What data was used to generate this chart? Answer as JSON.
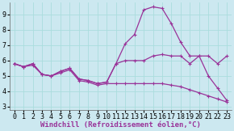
{
  "xlabel": "Windchill (Refroidissement éolien,°C)",
  "background_color": "#cce8f0",
  "grid_color": "#aadddd",
  "line_color": "#993399",
  "xlim": [
    -0.5,
    23.5
  ],
  "ylim": [
    2.8,
    9.8
  ],
  "yticks": [
    3,
    4,
    5,
    6,
    7,
    8,
    9
  ],
  "xticks": [
    0,
    1,
    2,
    3,
    4,
    5,
    6,
    7,
    8,
    9,
    10,
    11,
    12,
    13,
    14,
    15,
    16,
    17,
    18,
    19,
    20,
    21,
    22,
    23
  ],
  "series1_x": [
    0,
    1,
    2,
    3,
    4,
    5,
    6,
    7,
    8,
    9,
    10,
    11,
    12,
    13,
    14,
    15,
    16,
    17,
    18,
    19,
    20,
    21,
    22,
    23
  ],
  "series1_y": [
    5.8,
    5.6,
    5.8,
    5.1,
    5.0,
    5.3,
    5.5,
    4.8,
    4.7,
    4.5,
    4.6,
    5.8,
    6.0,
    6.0,
    6.0,
    6.3,
    6.4,
    6.3,
    6.3,
    5.8,
    6.3,
    6.3,
    5.8,
    6.3
  ],
  "series2_x": [
    0,
    1,
    2,
    3,
    4,
    5,
    6,
    7,
    8,
    9,
    10,
    11,
    12,
    13,
    14,
    15,
    16,
    17,
    18,
    19,
    20,
    21,
    22,
    23
  ],
  "series2_y": [
    5.8,
    5.6,
    5.8,
    5.1,
    5.0,
    5.3,
    5.5,
    4.8,
    4.7,
    4.5,
    4.6,
    5.8,
    7.1,
    7.7,
    9.3,
    9.5,
    9.4,
    8.4,
    7.2,
    6.3,
    6.3,
    5.0,
    4.2,
    3.4
  ],
  "series3_x": [
    0,
    1,
    2,
    3,
    4,
    5,
    6,
    7,
    8,
    9,
    10,
    11,
    12,
    13,
    14,
    15,
    16,
    17,
    18,
    19,
    20,
    21,
    22,
    23
  ],
  "series3_y": [
    5.8,
    5.6,
    5.7,
    5.1,
    5.0,
    5.2,
    5.4,
    4.7,
    4.6,
    4.4,
    4.5,
    4.5,
    4.5,
    4.5,
    4.5,
    4.5,
    4.5,
    4.4,
    4.3,
    4.1,
    3.9,
    3.7,
    3.5,
    3.3
  ],
  "marker": "P",
  "markersize": 3,
  "linewidth": 0.9,
  "xlabel_fontsize": 6.5,
  "tick_fontsize": 6.0
}
